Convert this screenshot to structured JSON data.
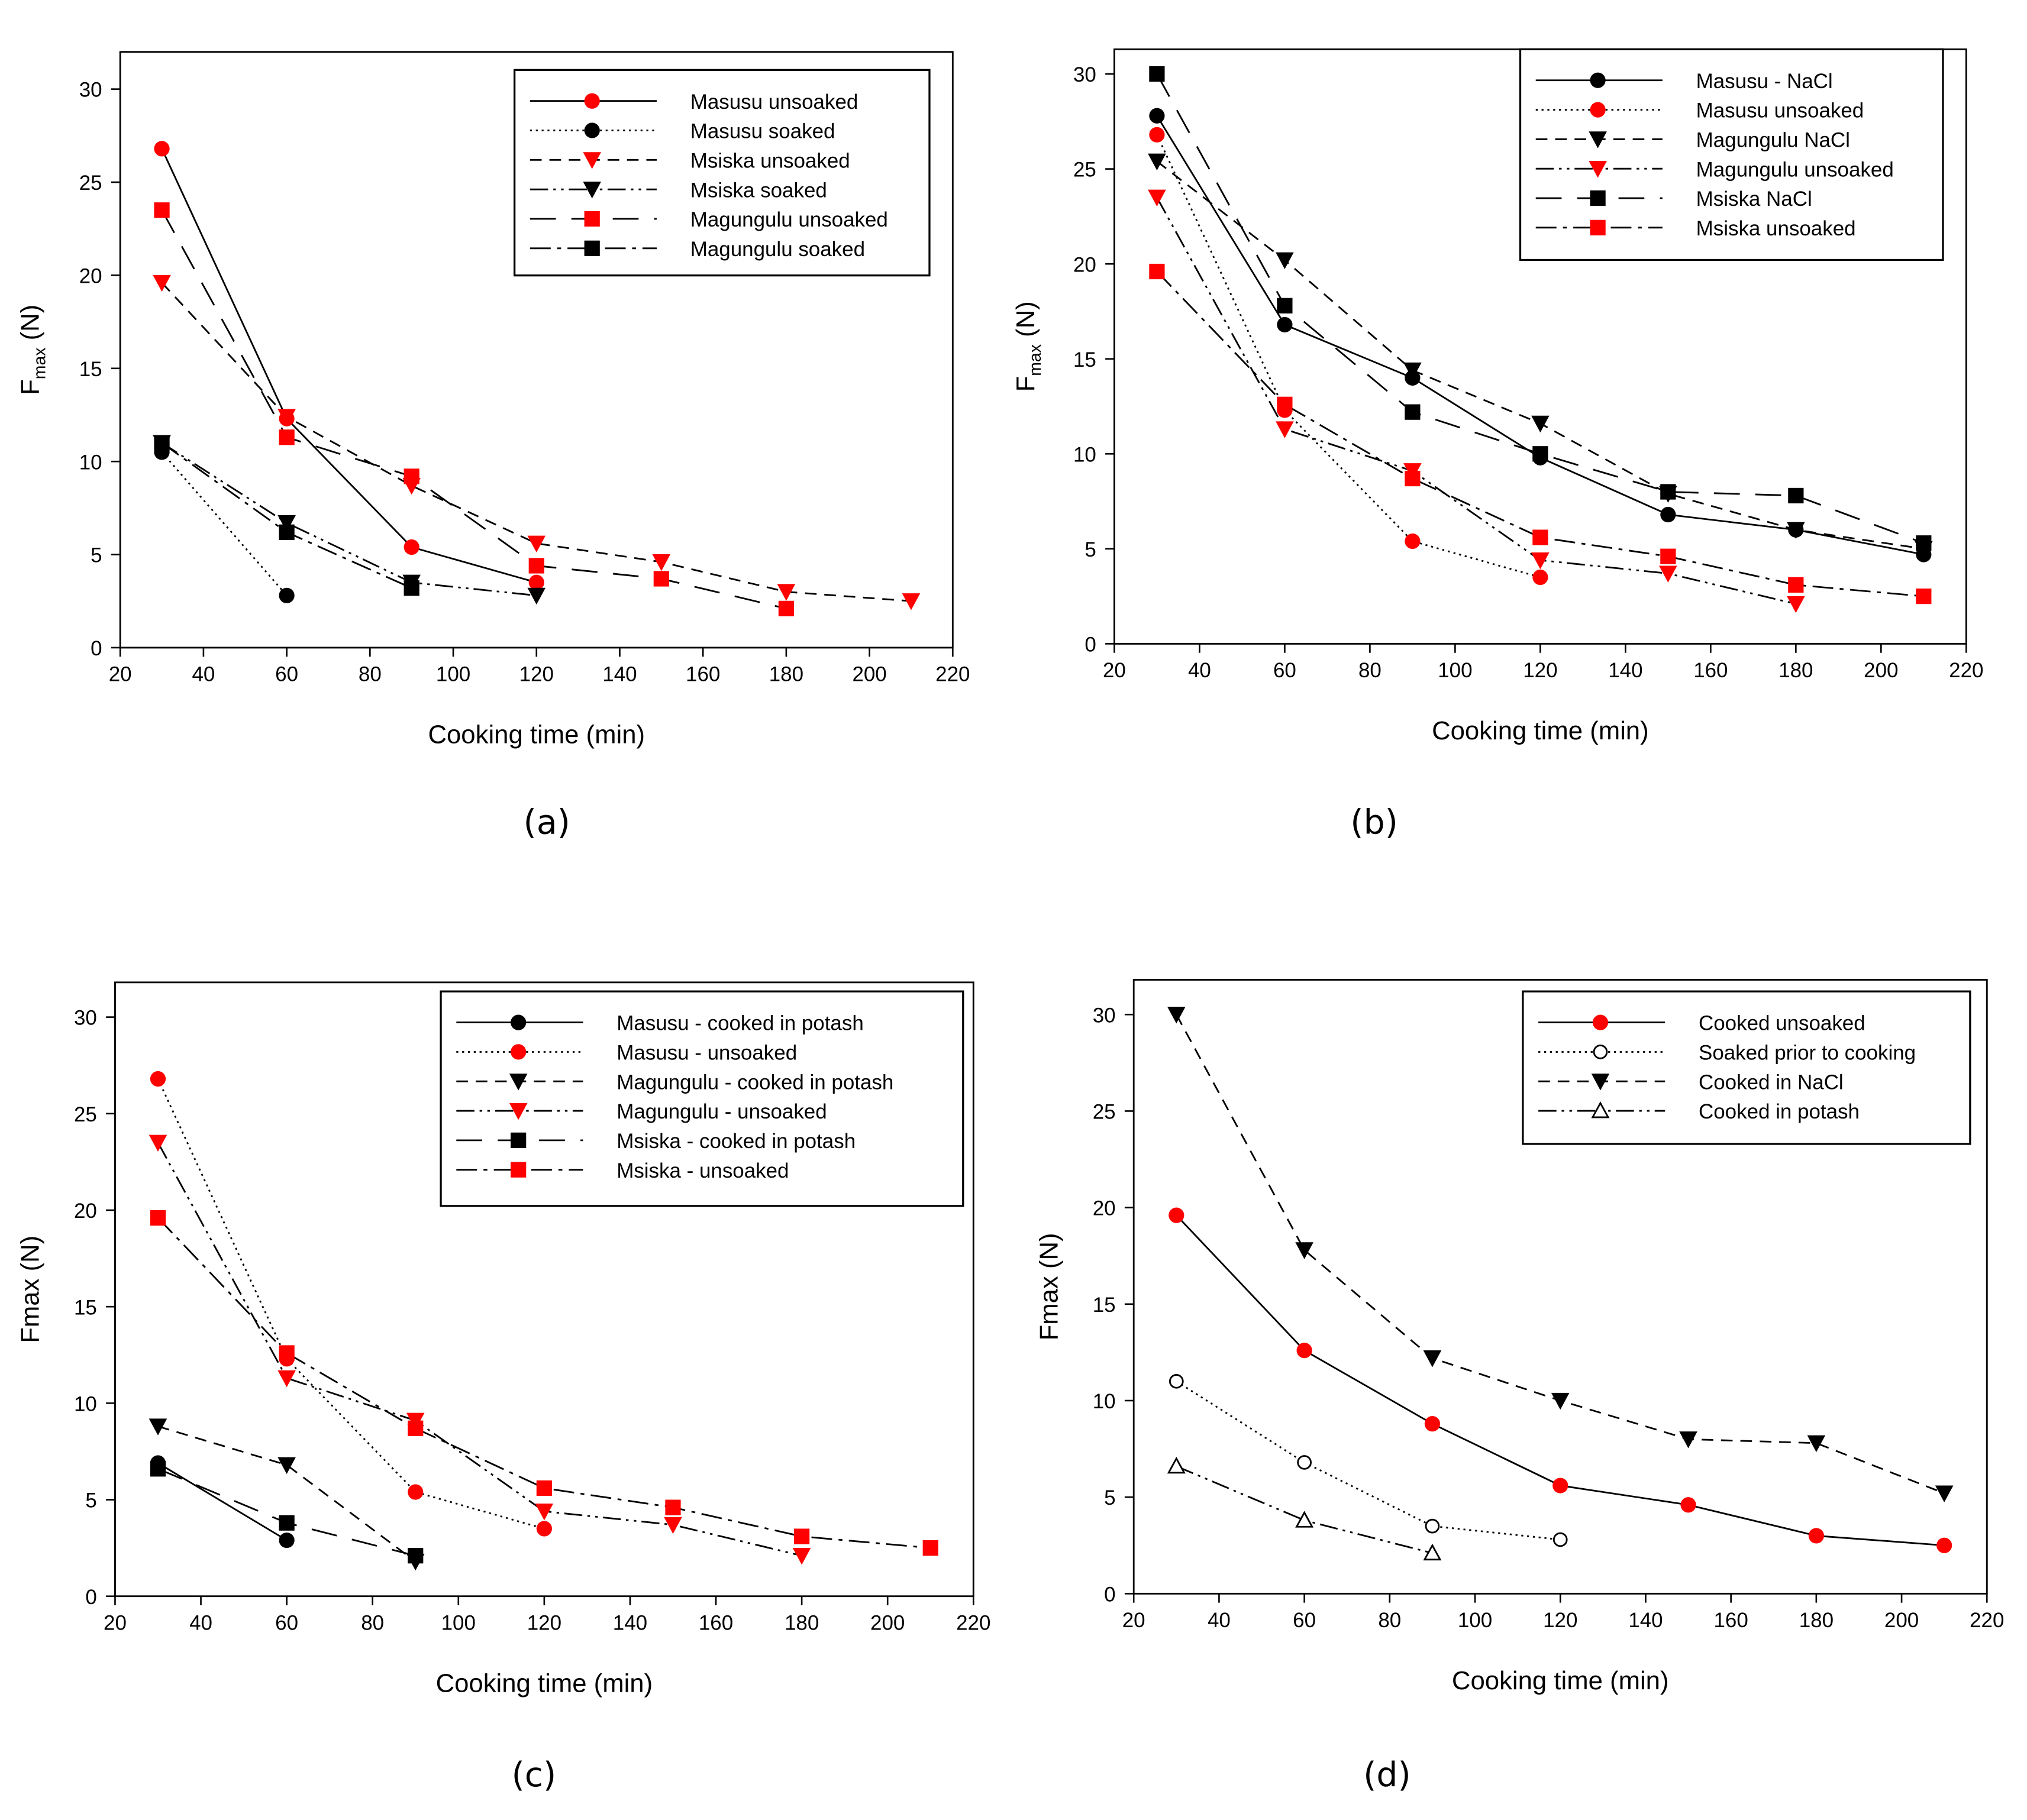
{
  "colors": {
    "red": "#ff0000",
    "black": "#000000"
  },
  "chart_data": [
    {
      "type": "line",
      "panel_label": "(a)",
      "xlabel": "Cooking time (min)",
      "ylabel": "Fmax (N)",
      "ylabel_subscript": true,
      "xlim": [
        20,
        220
      ],
      "ylim": [
        0,
        32
      ],
      "xticks": [
        20,
        40,
        60,
        80,
        100,
        120,
        140,
        160,
        180,
        200,
        220
      ],
      "yticks": [
        0,
        5,
        10,
        15,
        20,
        25,
        30
      ],
      "legend_position": "top-right",
      "series": [
        {
          "name": "Masusu unsoaked",
          "marker": "circle",
          "color": "#ff0000",
          "line": "solid",
          "x": [
            30,
            60,
            90,
            120
          ],
          "y": [
            26.8,
            12.3,
            5.4,
            3.5
          ]
        },
        {
          "name": "Masusu soaked",
          "marker": "circle",
          "color": "#000000",
          "line": "dotted",
          "x": [
            30,
            60
          ],
          "y": [
            10.5,
            2.8
          ]
        },
        {
          "name": "Msiska unsoaked",
          "marker": "triangle-down",
          "color": "#ff0000",
          "line": "dashed",
          "x": [
            30,
            60,
            90,
            120,
            150,
            180,
            210
          ],
          "y": [
            19.6,
            12.4,
            8.7,
            5.6,
            4.6,
            3.0,
            2.5
          ]
        },
        {
          "name": "Msiska soaked",
          "marker": "triangle-down",
          "color": "#000000",
          "line": "dash-dot-dot",
          "x": [
            30,
            60,
            90,
            120
          ],
          "y": [
            11.0,
            6.7,
            3.5,
            2.8
          ]
        },
        {
          "name": "Magungulu unsoaked",
          "marker": "square",
          "color": "#ff0000",
          "line": "long-dash",
          "x": [
            30,
            60,
            90,
            120,
            150,
            180
          ],
          "y": [
            23.5,
            11.3,
            9.2,
            4.4,
            3.7,
            2.1
          ]
        },
        {
          "name": "Magungulu soaked",
          "marker": "square",
          "color": "#000000",
          "line": "dash-dot",
          "x": [
            30,
            60,
            90
          ],
          "y": [
            11.0,
            6.2,
            3.2
          ]
        }
      ]
    },
    {
      "type": "line",
      "panel_label": "(b)",
      "xlabel": "Cooking time (min)",
      "ylabel": "Fmax (N)",
      "ylabel_subscript": true,
      "xlim": [
        20,
        220
      ],
      "ylim": [
        0,
        31.3
      ],
      "xticks": [
        20,
        40,
        60,
        80,
        100,
        120,
        140,
        160,
        180,
        200,
        220
      ],
      "yticks": [
        0,
        5,
        10,
        15,
        20,
        25,
        30
      ],
      "legend_position": "top-right",
      "series": [
        {
          "name": "Masusu - NaCl",
          "marker": "circle",
          "color": "#000000",
          "line": "solid",
          "x": [
            30,
            60,
            90,
            120,
            150,
            180,
            210
          ],
          "y": [
            27.8,
            16.8,
            14.0,
            9.8,
            6.8,
            6.0,
            4.7
          ]
        },
        {
          "name": "Masusu unsoaked",
          "marker": "circle",
          "color": "#ff0000",
          "line": "dotted",
          "x": [
            30,
            60,
            90,
            120
          ],
          "y": [
            26.8,
            12.3,
            5.4,
            3.5
          ]
        },
        {
          "name": "Magungulu NaCl",
          "marker": "triangle-down",
          "color": "#000000",
          "line": "dashed",
          "x": [
            30,
            60,
            90,
            120,
            150,
            180,
            210
          ],
          "y": [
            25.4,
            20.2,
            14.4,
            11.6,
            7.9,
            6.0,
            5.0
          ]
        },
        {
          "name": "Magungulu unsoaked",
          "marker": "triangle-down",
          "color": "#ff0000",
          "line": "dash-dot-dot",
          "x": [
            30,
            60,
            90,
            120,
            150,
            180
          ],
          "y": [
            23.5,
            11.3,
            9.1,
            4.4,
            3.7,
            2.1
          ]
        },
        {
          "name": "Msiska NaCl",
          "marker": "square",
          "color": "#000000",
          "line": "long-dash",
          "x": [
            30,
            60,
            90,
            120,
            150,
            180,
            210
          ],
          "y": [
            30.0,
            17.8,
            12.2,
            10.0,
            8.0,
            7.8,
            5.3
          ]
        },
        {
          "name": "Msiska unsoaked",
          "marker": "square",
          "color": "#ff0000",
          "line": "dash-dot",
          "x": [
            30,
            60,
            90,
            120,
            150,
            180,
            210
          ],
          "y": [
            19.6,
            12.6,
            8.7,
            5.6,
            4.6,
            3.1,
            2.5
          ]
        }
      ]
    },
    {
      "type": "line",
      "panel_label": "(c)",
      "xlabel": "Cooking time (min)",
      "ylabel": "Fmax (N)",
      "ylabel_subscript": false,
      "xlim": [
        20,
        220
      ],
      "ylim": [
        0,
        31.8
      ],
      "xticks": [
        20,
        40,
        60,
        80,
        100,
        120,
        140,
        160,
        180,
        200,
        220
      ],
      "yticks": [
        0,
        5,
        10,
        15,
        20,
        25,
        30
      ],
      "legend_position": "top-right",
      "series": [
        {
          "name": "Masusu - cooked in potash",
          "marker": "circle",
          "color": "#000000",
          "line": "solid",
          "x": [
            30,
            60
          ],
          "y": [
            6.9,
            2.9
          ]
        },
        {
          "name": "Masusu - unsoaked",
          "marker": "circle",
          "color": "#ff0000",
          "line": "dotted",
          "x": [
            30,
            60,
            90,
            120
          ],
          "y": [
            26.8,
            12.3,
            5.4,
            3.5
          ]
        },
        {
          "name": "Magungulu - cooked in potash",
          "marker": "triangle-down",
          "color": "#000000",
          "line": "dashed",
          "x": [
            30,
            60,
            90
          ],
          "y": [
            8.8,
            6.8,
            1.8
          ]
        },
        {
          "name": "Magungulu - unsoaked",
          "marker": "triangle-down",
          "color": "#ff0000",
          "line": "dash-dot-dot",
          "x": [
            30,
            60,
            90,
            120,
            150,
            180
          ],
          "y": [
            23.5,
            11.3,
            9.1,
            4.4,
            3.7,
            2.1
          ]
        },
        {
          "name": "Msiska - cooked in potash",
          "marker": "square",
          "color": "#000000",
          "line": "long-dash",
          "x": [
            30,
            60,
            90
          ],
          "y": [
            6.6,
            3.8,
            2.1
          ]
        },
        {
          "name": "Msiska - unsoaked",
          "marker": "square",
          "color": "#ff0000",
          "line": "dash-dot",
          "x": [
            30,
            60,
            90,
            120,
            150,
            180,
            210
          ],
          "y": [
            19.6,
            12.6,
            8.7,
            5.6,
            4.6,
            3.1,
            2.5
          ]
        }
      ]
    },
    {
      "type": "line",
      "panel_label": "(d)",
      "xlabel": "Cooking time (min)",
      "ylabel": "Fmax (N)",
      "ylabel_subscript": false,
      "xlim": [
        20,
        220
      ],
      "ylim": [
        0,
        31.8
      ],
      "xticks": [
        20,
        40,
        60,
        80,
        100,
        120,
        140,
        160,
        180,
        200,
        220
      ],
      "yticks": [
        0,
        5,
        10,
        15,
        20,
        25,
        30
      ],
      "legend_position": "top-right",
      "series": [
        {
          "name": "Cooked unsoaked",
          "marker": "circle",
          "color": "#ff0000",
          "line": "solid",
          "x": [
            30,
            60,
            90,
            120,
            150,
            180,
            210
          ],
          "y": [
            19.6,
            12.6,
            8.8,
            5.6,
            4.6,
            3.0,
            2.5
          ]
        },
        {
          "name": "Soaked prior to cooking",
          "marker": "circle-open",
          "color": "#000000",
          "line": "dotted",
          "x": [
            30,
            60,
            90,
            120
          ],
          "y": [
            11.0,
            6.8,
            3.5,
            2.8
          ]
        },
        {
          "name": "Cooked in NaCl",
          "marker": "triangle-down",
          "color": "#000000",
          "line": "dashed",
          "x": [
            30,
            60,
            90,
            120,
            150,
            180,
            210
          ],
          "y": [
            30.0,
            17.8,
            12.2,
            10.0,
            8.0,
            7.8,
            5.2
          ]
        },
        {
          "name": "Cooked in potash",
          "marker": "triangle-up-open",
          "color": "#000000",
          "line": "dash-dot-dot",
          "x": [
            30,
            60,
            90
          ],
          "y": [
            6.6,
            3.8,
            2.1
          ]
        }
      ]
    }
  ]
}
